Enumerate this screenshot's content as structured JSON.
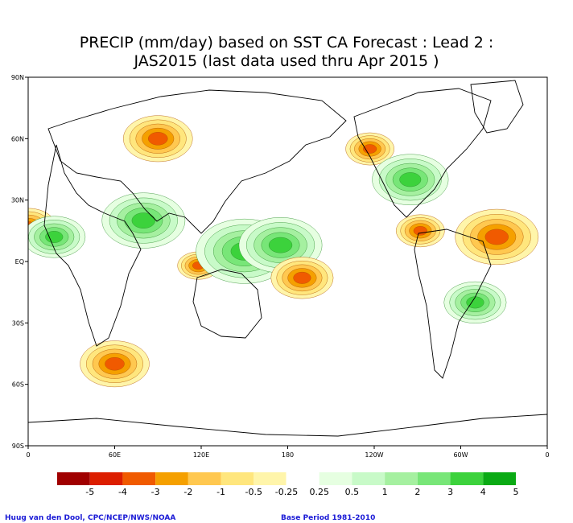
{
  "title": {
    "line1": "PRECIP (mm/day) based on SST CA Forecast : Lead 2 :",
    "line2": "JAS2015 (last data used thru Apr 2015 )"
  },
  "axes": {
    "lat_labels": [
      "90N",
      "60N",
      "30N",
      "EQ",
      "30S",
      "60S",
      "90S"
    ],
    "lon_labels": [
      "0",
      "60E",
      "120E",
      "180",
      "120W",
      "60W",
      "0"
    ]
  },
  "legend": {
    "labels": [
      "-5",
      "-4",
      "-3",
      "-2",
      "-1",
      "-0.5",
      "-0.25",
      "0.25",
      "0.5",
      "1",
      "2",
      "3",
      "4",
      "5"
    ],
    "colors": [
      "#a00000",
      "#dc1e00",
      "#f05a00",
      "#f5a000",
      "#ffc850",
      "#ffe67d",
      "#fff5aa",
      "#ffffff",
      "#e6ffe1",
      "#c8fac8",
      "#a5f0a0",
      "#78e678",
      "#3cd23c",
      "#0aaa14"
    ]
  },
  "credits": {
    "left": "Huug van den Dool, CPC/NCEP/NWS/NOAA",
    "right": "Base Period 1981-2010"
  },
  "regions": [
    {
      "name": "n-america-west-dry",
      "lon": -123,
      "lat": 55,
      "r": 7,
      "sign": -1
    },
    {
      "name": "west-africa-sahel-dry",
      "lon": 0,
      "lat": 17,
      "r": 8,
      "sign": -1
    },
    {
      "name": "west-africa-wet",
      "lon": 18,
      "lat": 12,
      "r": 9,
      "sign": 1
    },
    {
      "name": "india-wet",
      "lon": 80,
      "lat": 20,
      "r": 12,
      "sign": 1
    },
    {
      "name": "maritime-continent-dry",
      "lon": 118,
      "lat": -2,
      "r": 6,
      "sign": -1
    },
    {
      "name": "tropical-pacific-wet",
      "lon": 150,
      "lat": 5,
      "r": 14,
      "sign": 1
    },
    {
      "name": "central-pacific-wet",
      "lon": 175,
      "lat": 8,
      "r": 12,
      "sign": 1
    },
    {
      "name": "south-pacific-dry",
      "lon": -170,
      "lat": -8,
      "r": 9,
      "sign": -1
    },
    {
      "name": "central-america-dry",
      "lon": -88,
      "lat": 15,
      "r": 7,
      "sign": -1
    },
    {
      "name": "tropical-atlantic-dry",
      "lon": -35,
      "lat": 12,
      "r": 12,
      "sign": -1
    },
    {
      "name": "brazil-wet",
      "lon": -50,
      "lat": -20,
      "r": 9,
      "sign": 1
    },
    {
      "name": "north-america-wet",
      "lon": -95,
      "lat": 40,
      "r": 11,
      "sign": 1
    },
    {
      "name": "siberia-dry",
      "lon": 90,
      "lat": 60,
      "r": 10,
      "sign": -1
    },
    {
      "name": "southern-ocean-dry",
      "lon": 60,
      "lat": -50,
      "r": 10,
      "sign": -1
    }
  ]
}
